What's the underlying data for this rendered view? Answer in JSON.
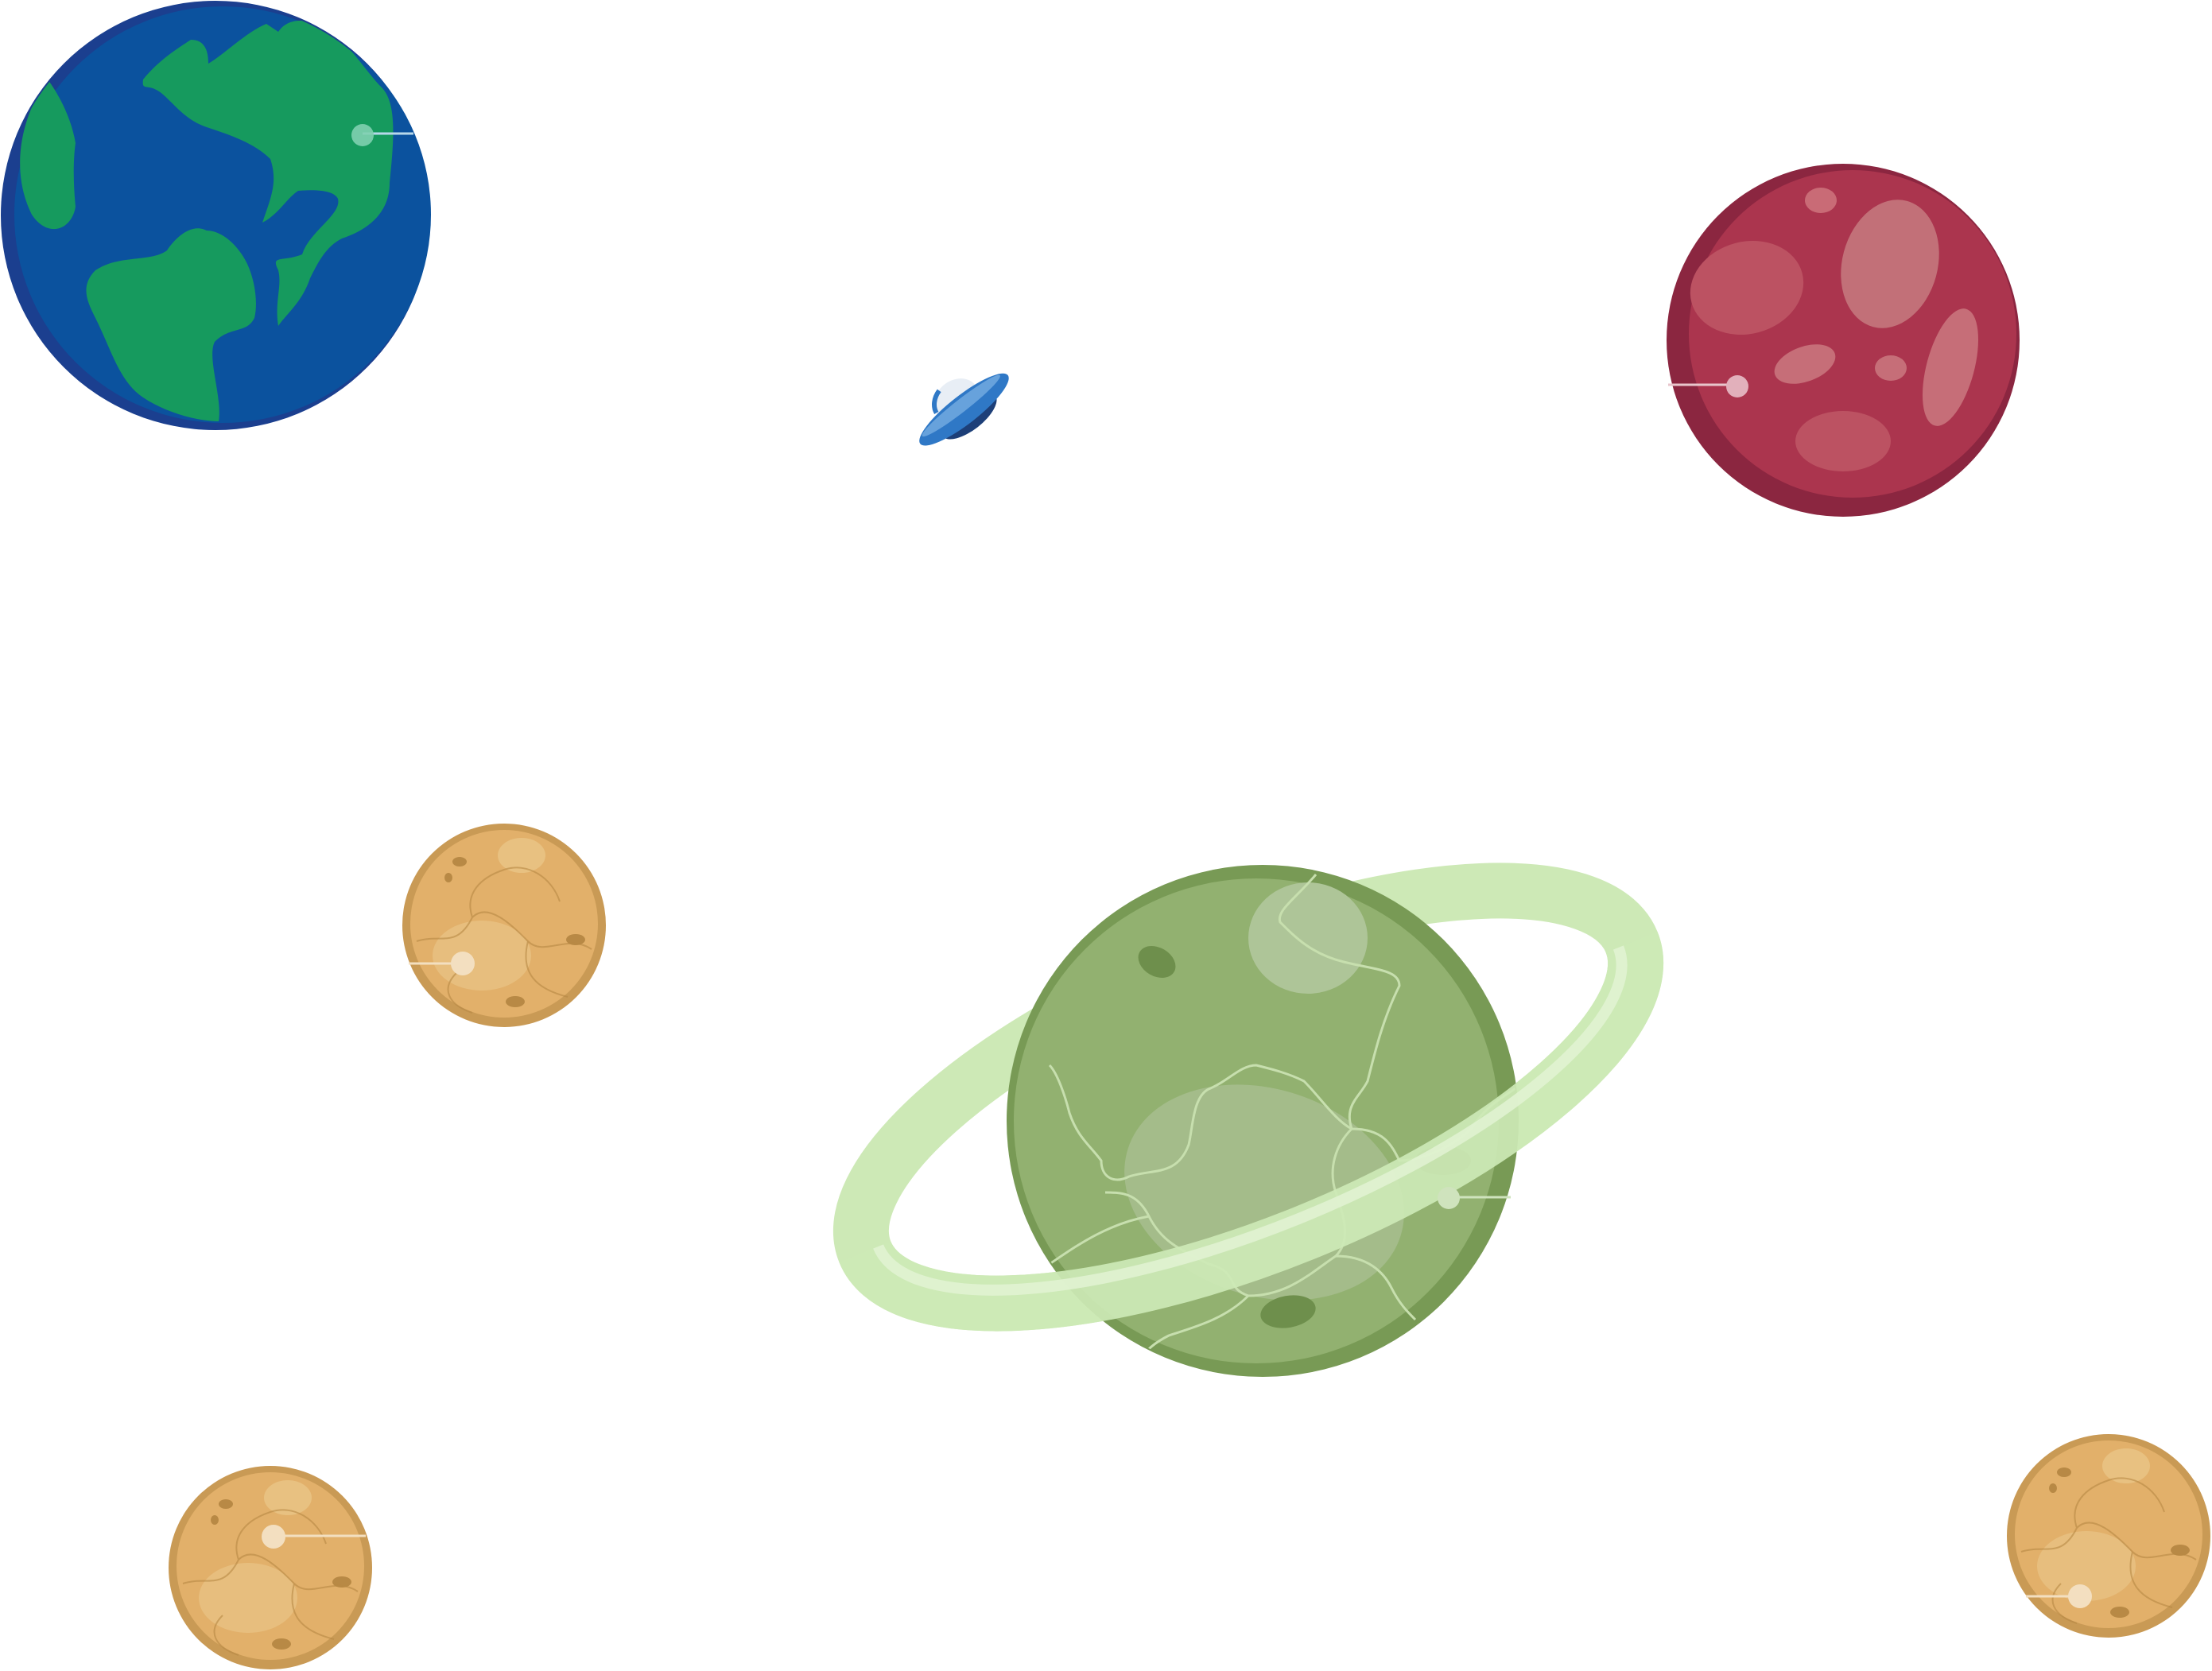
{
  "scene": {
    "background": "#ffffff",
    "objects": [
      {
        "kind": "planet",
        "icon": "earth-icon",
        "colors": {
          "ocean": "#0b529e",
          "land": "#169a5e",
          "rim": "#1b3f8f"
        }
      },
      {
        "kind": "planet",
        "icon": "red-planet-icon",
        "colors": {
          "body": "#ab354e",
          "rim": "#8b2640",
          "spots": "#c36b75"
        }
      },
      {
        "kind": "spaceship",
        "icon": "ufo-icon",
        "colors": {
          "hull": "#2f78c6",
          "dark": "#1d3f78",
          "dome": "#e8eef5"
        }
      },
      {
        "kind": "planet",
        "icon": "ringed-green-planet-icon",
        "colors": {
          "body": "#92b170",
          "rim": "#789a55",
          "ring": "#cde9b6"
        }
      },
      {
        "kind": "moon",
        "icon": "orange-moon-icon",
        "count": 3,
        "colors": {
          "body": "#e2b06a",
          "rim": "#c99a55",
          "crater": "#b88945"
        }
      }
    ]
  }
}
